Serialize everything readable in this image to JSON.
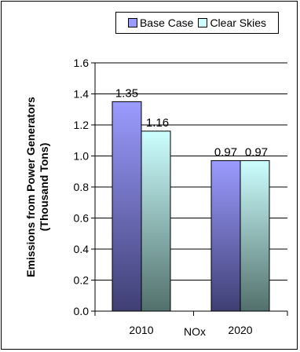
{
  "chart_data": {
    "type": "bar",
    "categories": [
      "2010",
      "2020"
    ],
    "group_label": "NOx",
    "series": [
      {
        "name": "Base Case",
        "values": [
          1.35,
          0.97
        ],
        "labels": [
          "1.35",
          "0.97"
        ]
      },
      {
        "name": "Clear Skies",
        "values": [
          1.16,
          0.97
        ],
        "labels": [
          "1.16",
          "0.97"
        ]
      }
    ],
    "ylabel_lines": [
      "Emissions from Power Generators",
      "(Thousand Tons)"
    ],
    "ylim": [
      0,
      1.6
    ],
    "yticks": [
      "0.0",
      "0.2",
      "0.4",
      "0.6",
      "0.8",
      "1.0",
      "1.2",
      "1.4",
      "1.6"
    ],
    "grid": true,
    "legend_position": "top-right",
    "colors": {
      "base_top": "#9b9bff",
      "base_bottom": "#3f3f74",
      "clear_top": "#ccffff",
      "clear_bottom": "#52706b"
    }
  }
}
